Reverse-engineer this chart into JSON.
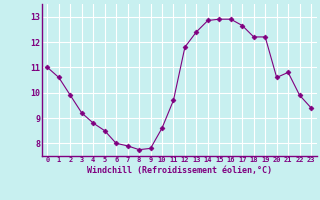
{
  "x": [
    0,
    1,
    2,
    3,
    4,
    5,
    6,
    7,
    8,
    9,
    10,
    11,
    12,
    13,
    14,
    15,
    16,
    17,
    18,
    19,
    20,
    21,
    22,
    23
  ],
  "y": [
    11.0,
    10.6,
    9.9,
    9.2,
    8.8,
    8.5,
    8.0,
    7.9,
    7.75,
    7.8,
    8.6,
    9.7,
    11.8,
    12.4,
    12.85,
    12.9,
    12.9,
    12.65,
    12.2,
    12.2,
    10.6,
    10.8,
    9.9,
    9.4
  ],
  "line_color": "#800080",
  "marker": "D",
  "marker_size": 2.5,
  "bg_color": "#c8f0f0",
  "grid_color": "#ffffff",
  "xlabel": "Windchill (Refroidissement éolien,°C)",
  "xlabel_color": "#800080",
  "tick_color": "#800080",
  "ylim": [
    7.5,
    13.5
  ],
  "xlim": [
    -0.5,
    23.5
  ],
  "yticks": [
    8,
    9,
    10,
    11,
    12,
    13
  ],
  "xticks": [
    0,
    1,
    2,
    3,
    4,
    5,
    6,
    7,
    8,
    9,
    10,
    11,
    12,
    13,
    14,
    15,
    16,
    17,
    18,
    19,
    20,
    21,
    22,
    23
  ]
}
